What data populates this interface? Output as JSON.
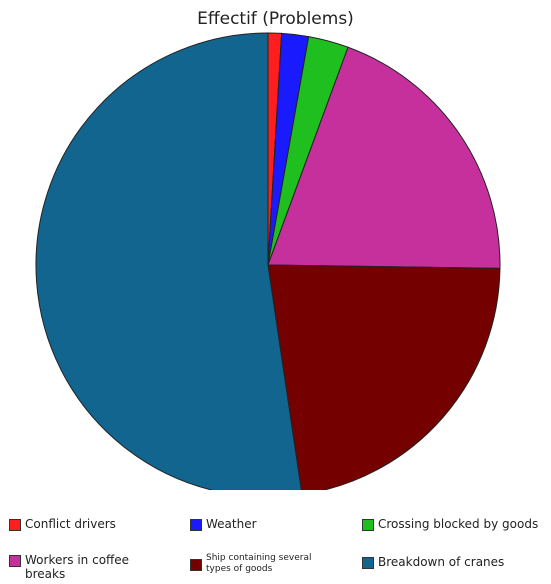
{
  "chart_data": {
    "type": "pie",
    "title": "Effectif (Problems)",
    "legend_position": "bottom",
    "categories": [
      "Conflict drivers",
      "Weather",
      "Crossing blocked by goods",
      "Workers in coffee breaks",
      "Ship containing several types of goods",
      "Breakdown of cranes"
    ],
    "colors": [
      "#ff1e1e",
      "#1a1aff",
      "#1fbf1f",
      "#c6309c",
      "#740000",
      "#11658f"
    ],
    "values": [
      1,
      2,
      3,
      21,
      24,
      56
    ]
  },
  "legend": [
    {
      "label": "Conflict drivers",
      "color": "#ff1e1e"
    },
    {
      "label": "Weather",
      "color": "#1a1aff"
    },
    {
      "label": "Crossing blocked by goods",
      "color": "#1fbf1f"
    },
    {
      "label": "Workers in coffee breaks",
      "color": "#c6309c"
    },
    {
      "label": "Ship containing several types of goods",
      "color": "#740000"
    },
    {
      "label": "Breakdown of cranes",
      "color": "#11658f"
    }
  ]
}
